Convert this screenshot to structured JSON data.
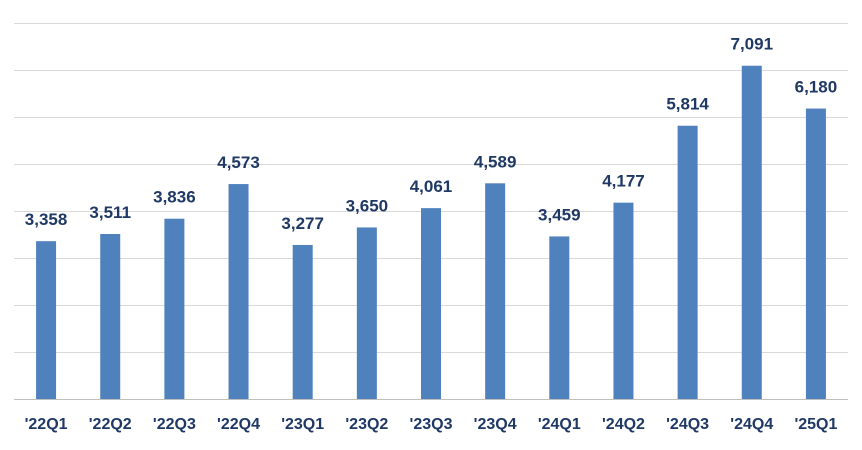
{
  "chart_data": {
    "type": "bar",
    "categories": [
      "'22Q1",
      "'22Q2",
      "'22Q3",
      "'22Q4",
      "'23Q1",
      "'23Q2",
      "'23Q3",
      "'23Q4",
      "'24Q1",
      "'24Q2",
      "'24Q3",
      "'24Q4",
      "'25Q1"
    ],
    "values": [
      3358,
      3511,
      3836,
      4573,
      3277,
      3650,
      4061,
      4589,
      3459,
      4177,
      5814,
      7091,
      6180
    ],
    "data_labels": [
      "3,358",
      "3,511",
      "3,836",
      "4,573",
      "3,277",
      "3,650",
      "4,061",
      "4,589",
      "3,459",
      "4,177",
      "5,814",
      "7,091",
      "6,180"
    ],
    "title": "",
    "xlabel": "",
    "ylabel": "",
    "ylim": [
      0,
      8000
    ],
    "grid": true,
    "legend": "none",
    "bar_color": "#4f81bd",
    "label_color": "#1f3864"
  }
}
